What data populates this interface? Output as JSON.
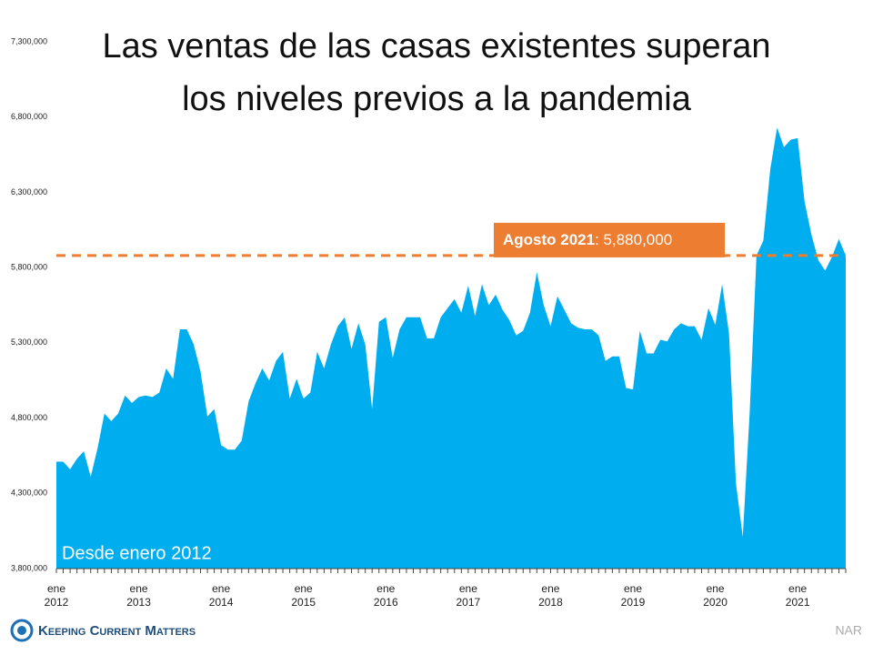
{
  "chart_data": {
    "type": "area",
    "title": "Las ventas de las casas existentes superan\nlos niveles previos a la pandemia",
    "annotation": "Desde enero 2012",
    "reference_line": {
      "value": 5880000,
      "label": "Agosto 2021",
      "value_label": "5,880,000",
      "color": "#ed7d31"
    },
    "brand": "Keeping Current Matters",
    "source": "NAR",
    "categories": [
      "ene\n2012",
      null,
      null,
      null,
      null,
      null,
      null,
      null,
      null,
      null,
      null,
      null,
      "ene\n2013",
      null,
      null,
      null,
      null,
      null,
      null,
      null,
      null,
      null,
      null,
      null,
      "ene\n2014",
      null,
      null,
      null,
      null,
      null,
      null,
      null,
      null,
      null,
      null,
      null,
      "ene\n2015",
      null,
      null,
      null,
      null,
      null,
      null,
      null,
      null,
      null,
      null,
      null,
      "ene\n2016",
      null,
      null,
      null,
      null,
      null,
      null,
      null,
      null,
      null,
      null,
      null,
      "ene\n2017",
      null,
      null,
      null,
      null,
      null,
      null,
      null,
      null,
      null,
      null,
      null,
      "ene\n2018",
      null,
      null,
      null,
      null,
      null,
      null,
      null,
      null,
      null,
      null,
      null,
      "ene\n2019",
      null,
      null,
      null,
      null,
      null,
      null,
      null,
      null,
      null,
      null,
      null,
      "ene\n2020",
      null,
      null,
      null,
      null,
      null,
      null,
      null,
      null,
      null,
      null,
      null,
      "ene\n2021",
      null,
      null,
      null,
      null,
      null,
      null,
      null
    ],
    "color": "#00aeef",
    "values": [
      4510000,
      4510000,
      4460000,
      4530000,
      4580000,
      4410000,
      4600000,
      4830000,
      4780000,
      4830000,
      4950000,
      4900000,
      4940000,
      4950000,
      4940000,
      4970000,
      5130000,
      5060000,
      5390000,
      5390000,
      5290000,
      5110000,
      4810000,
      4860000,
      4620000,
      4590000,
      4590000,
      4650000,
      4910000,
      5030000,
      5130000,
      5050000,
      5180000,
      5240000,
      4930000,
      5060000,
      4930000,
      4970000,
      5240000,
      5130000,
      5290000,
      5410000,
      5470000,
      5260000,
      5430000,
      5290000,
      4860000,
      5440000,
      5470000,
      5200000,
      5390000,
      5470000,
      5470000,
      5470000,
      5330000,
      5330000,
      5470000,
      5530000,
      5590000,
      5500000,
      5680000,
      5480000,
      5690000,
      5550000,
      5620000,
      5520000,
      5450000,
      5350000,
      5380000,
      5500000,
      5770000,
      5550000,
      5410000,
      5610000,
      5520000,
      5430000,
      5400000,
      5390000,
      5390000,
      5350000,
      5180000,
      5210000,
      5210000,
      5000000,
      4990000,
      5380000,
      5230000,
      5230000,
      5320000,
      5310000,
      5390000,
      5430000,
      5410000,
      5410000,
      5320000,
      5530000,
      5420000,
      5690000,
      5360000,
      4370000,
      4010000,
      4830000,
      5880000,
      5980000,
      6450000,
      6730000,
      6600000,
      6650000,
      6660000,
      6240000,
      6020000,
      5850000,
      5780000,
      5870000,
      5990000,
      5880000
    ],
    "ylim": [
      3800000,
      7300000
    ],
    "yticks": [
      {
        "value": 3800000,
        "label": "3,800,000"
      },
      {
        "value": 4300000,
        "label": "4,300,000"
      },
      {
        "value": 4800000,
        "label": "4,800,000"
      },
      {
        "value": 5300000,
        "label": "5,300,000"
      },
      {
        "value": 5800000,
        "label": "5,800,000"
      },
      {
        "value": 6300000,
        "label": "6,300,000"
      },
      {
        "value": 6800000,
        "label": "6,800,000"
      },
      {
        "value": 7300000,
        "label": "7,300,000"
      }
    ]
  }
}
